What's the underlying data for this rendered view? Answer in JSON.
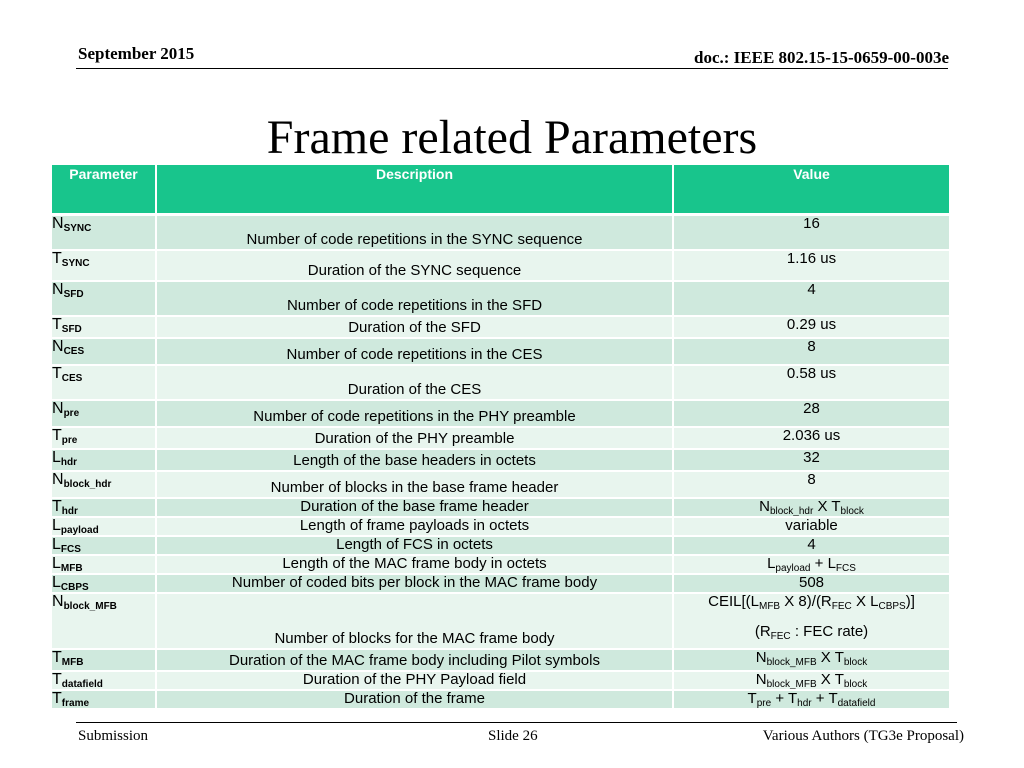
{
  "header": {
    "date": "September 2015",
    "doc": "doc.: IEEE 802.15-15-0659-00-003e"
  },
  "title": "Frame related Parameters",
  "table": {
    "columns": [
      "Parameter",
      "Description",
      "Value"
    ],
    "rows": [
      {
        "sym": "N",
        "sub": "SYNC",
        "desc": "Number of code repetitions in the SYNC sequence",
        "value": "16"
      },
      {
        "sym": "T",
        "sub": "SYNC",
        "desc": "Duration of the SYNC sequence",
        "value": "1.16 us"
      },
      {
        "sym": "N",
        "sub": "SFD",
        "desc": "Number of code repetitions in the SFD",
        "value": "4"
      },
      {
        "sym": "T",
        "sub": "SFD",
        "desc": "Duration of the SFD",
        "value": "0.29 us"
      },
      {
        "sym": "N",
        "sub": "CES",
        "desc": "Number of code repetitions in the CES",
        "value": "8"
      },
      {
        "sym": "T",
        "sub": "CES",
        "desc": "Duration of the CES",
        "value": "0.58 us"
      },
      {
        "sym": "N",
        "sub": "pre",
        "desc": "Number of code repetitions in the PHY preamble",
        "value": "28"
      },
      {
        "sym": "T",
        "sub": "pre",
        "desc": "Duration of the PHY preamble",
        "value": "2.036 us"
      },
      {
        "sym": "L",
        "sub": "hdr",
        "desc": "Length of the base headers in octets",
        "value": "32"
      },
      {
        "sym": "N",
        "sub": "block_hdr",
        "desc": "Number of blocks in the base frame header",
        "value": "8"
      },
      {
        "sym": "T",
        "sub": "hdr",
        "desc": "Duration of the base frame header",
        "value_parts": {
          "a": "N",
          "a_sub": "block_hdr",
          "op": " X ",
          "b": "T",
          "b_sub": "block"
        }
      },
      {
        "sym": "L",
        "sub": "payload",
        "desc": "Length of frame payloads in octets",
        "value": "variable"
      },
      {
        "sym": "L",
        "sub": "FCS",
        "desc": "Length of FCS in octets",
        "value": "4"
      },
      {
        "sym": "L",
        "sub": "MFB",
        "desc": "Length of the MAC frame body in octets",
        "value_parts": {
          "a": "L",
          "a_sub": "payload",
          "op": " + ",
          "b": "L",
          "b_sub": "FCS"
        }
      },
      {
        "sym": "L",
        "sub": "CBPS",
        "desc": "Number of coded bits per block in the MAC frame body",
        "value": "508"
      },
      {
        "sym": "N",
        "sub": "block_MFB",
        "desc": "Number of blocks for the MAC frame body",
        "value_ceil": {
          "p1": "CEIL[(L",
          "s1": "MFB",
          "p2": " X 8)/(R",
          "s2": "FEC",
          "p3": " X L",
          "s3": "CBPS",
          "p4": ")]",
          "note_pre": "(R",
          "note_sub": "FEC",
          "note_post": " : FEC rate)"
        }
      },
      {
        "sym": "T",
        "sub": "MFB",
        "desc": "Duration of the MAC frame body including Pilot symbols",
        "value_parts": {
          "a": "N",
          "a_sub": "block_MFB",
          "op": " X ",
          "b": "T",
          "b_sub": "block"
        }
      },
      {
        "sym": "T",
        "sub": "datafield",
        "desc": "Duration of the PHY Payload field",
        "value_parts": {
          "a": "N",
          "a_sub": "block_MFB",
          "op": " X ",
          "b": "T",
          "b_sub": "block"
        }
      },
      {
        "sym": "T",
        "sub": "frame",
        "desc": "Duration of the frame",
        "value_sum3": {
          "a": "T",
          "a_sub": "pre",
          "b": "T",
          "b_sub": "hdr",
          "c": "T",
          "c_sub": "datafield"
        }
      }
    ]
  },
  "footer": {
    "left": "Submission",
    "center": "Slide 26",
    "right": "Various Authors (TG3e Proposal)"
  }
}
